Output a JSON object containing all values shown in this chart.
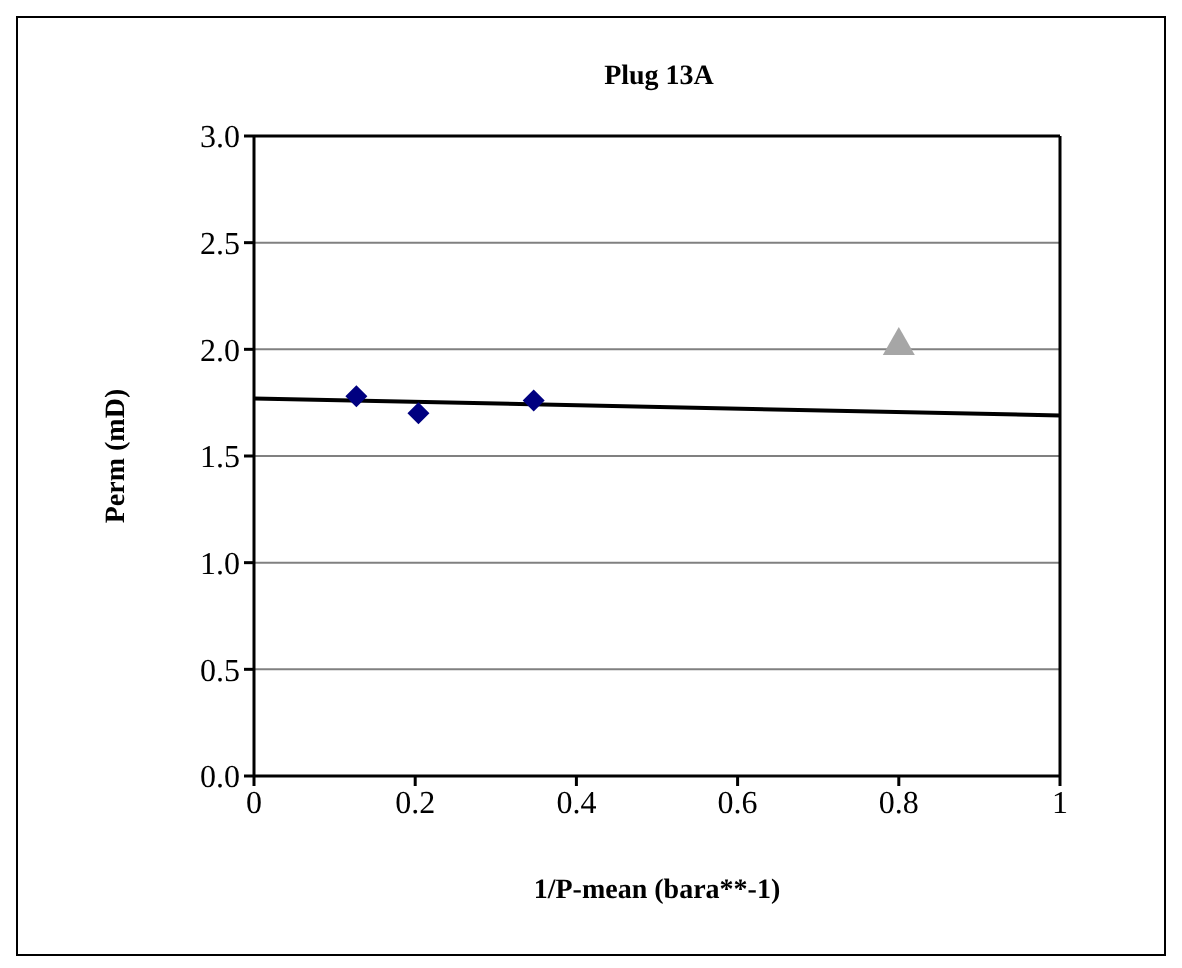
{
  "chart_data": {
    "type": "scatter",
    "title": "Plug 13A",
    "xlabel": "1/P-mean (bara**-1)",
    "ylabel": "Perm (mD)",
    "xlim": [
      0,
      1
    ],
    "xticks": [
      0,
      0.2,
      0.4,
      0.6,
      0.8,
      1
    ],
    "ylim": [
      0,
      3
    ],
    "yticks": [
      {
        "value": 0,
        "label": "0.0"
      },
      {
        "value": 0.5,
        "label": "0.5"
      },
      {
        "value": 1,
        "label": "1.0"
      },
      {
        "value": 1.5,
        "label": "1.5"
      },
      {
        "value": 2,
        "label": "2.0"
      },
      {
        "value": 2.5,
        "label": "2.5"
      },
      {
        "value": 3,
        "label": "3.0"
      }
    ],
    "grid": "y",
    "series": [
      {
        "type": "scatter",
        "marker": "diamond",
        "color": "#000080",
        "x": [
          0.127,
          0.204,
          0.347
        ],
        "values": [
          1.78,
          1.7,
          1.76
        ]
      },
      {
        "type": "scatter",
        "marker": "triangle",
        "color": "#a6a6a6",
        "x": [
          0.8
        ],
        "values": [
          2.03
        ]
      },
      {
        "type": "line",
        "marker": "none",
        "color": "#000000",
        "x": [
          0,
          1
        ],
        "values": [
          1.77,
          1.69
        ]
      }
    ]
  }
}
